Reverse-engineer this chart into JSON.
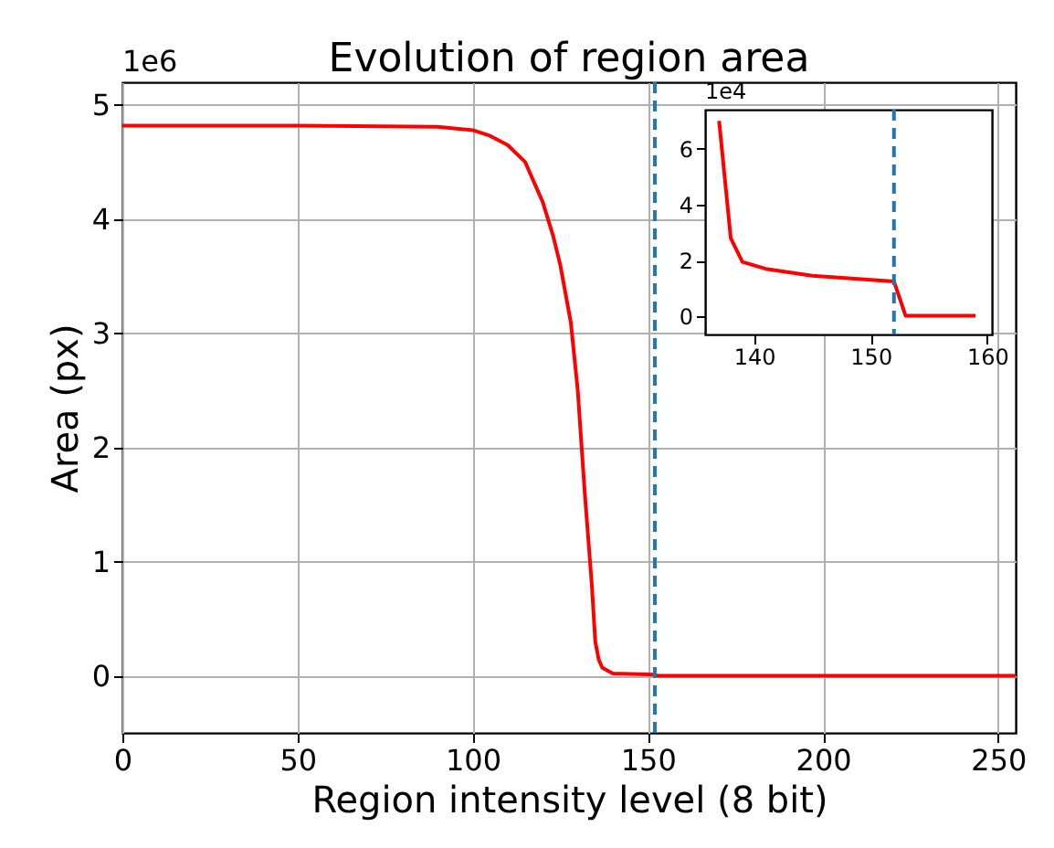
{
  "chart_data": [
    {
      "type": "line",
      "title": "Evolution of region area",
      "xlabel": "Region intensity level (8 bit)",
      "ylabel": "Area (px)",
      "annotations": [
        "1e6"
      ],
      "x": [
        0,
        50,
        90,
        100,
        105,
        110,
        115,
        120,
        123,
        125,
        128,
        130,
        132,
        134,
        135,
        136,
        137,
        140,
        152,
        153,
        200,
        255
      ],
      "series": [
        {
          "color": "#ff0000",
          "values": [
            4.82,
            4.82,
            4.81,
            4.78,
            4.73,
            4.65,
            4.5,
            4.15,
            3.85,
            3.6,
            3.1,
            2.5,
            1.6,
            0.8,
            0.3,
            0.14,
            0.07,
            0.02,
            0.01,
            0,
            0,
            0
          ]
        }
      ],
      "xlim": [
        0,
        255
      ],
      "xticks": [
        0,
        50,
        100,
        150,
        200,
        250
      ],
      "ylim": [
        -0.5,
        5.2
      ],
      "yticks": [
        0,
        1,
        2,
        3,
        4,
        5
      ],
      "grid": true,
      "ref_lines": [
        {
          "axis": "x",
          "value": 152,
          "color": "#1f77b4",
          "line_style": "dashed"
        }
      ]
    },
    {
      "type": "line",
      "annotations": [
        "1e4"
      ],
      "x": [
        137,
        138,
        139,
        141,
        145,
        152,
        153,
        159
      ],
      "series": [
        {
          "color": "#ff0000",
          "values": [
            7.0,
            2.8,
            1.95,
            1.7,
            1.45,
            1.25,
            0.02,
            0.02
          ]
        }
      ],
      "xlim": [
        135.8,
        160.4
      ],
      "xticks": [
        140,
        150,
        160
      ],
      "ylim": [
        -0.65,
        7.4
      ],
      "yticks": [
        0,
        2,
        4,
        6
      ],
      "ref_lines": [
        {
          "axis": "x",
          "value": 152,
          "color": "#1f77b4",
          "line_style": "dashed"
        }
      ]
    }
  ]
}
